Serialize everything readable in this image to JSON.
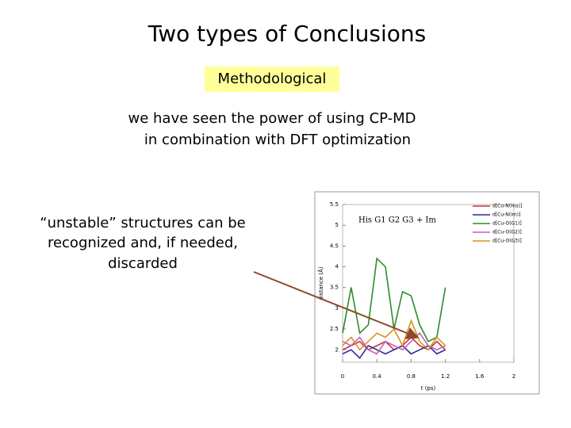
{
  "title": "Two types of Conclusions",
  "tag": "Methodological",
  "statement": [
    "we have seen the power of using CP-MD",
    "in combination with DFT optimization"
  ],
  "note": [
    "“unstable” structures can be",
    "recognized and, if needed,",
    "discarded"
  ],
  "figure": {
    "type": "line",
    "annotation": "His G1 G2 G3 + Im",
    "x_label": "t (ps)",
    "y_label": "distance (Å)",
    "xlim": [
      0,
      2
    ],
    "ylim": [
      1.7,
      5.5
    ],
    "xticks": [
      0,
      0.4,
      0.8,
      1.2,
      1.6,
      2
    ],
    "yticks": [
      2,
      2.5,
      3,
      3.5,
      4,
      4.5,
      5,
      5.5
    ],
    "x": [
      0,
      0.1,
      0.2,
      0.3,
      0.4,
      0.5,
      0.6,
      0.7,
      0.8,
      0.9,
      1.0,
      1.1,
      1.2
    ],
    "series": [
      {
        "name": "d[Cu-N(His)]",
        "color": "#d03030",
        "values": [
          2.0,
          2.1,
          2.2,
          2.0,
          2.1,
          2.2,
          2.0,
          2.1,
          2.3,
          2.1,
          2.0,
          2.2,
          2.0
        ]
      },
      {
        "name": "d[Cu-N(Im)]",
        "color": "#2a2a9a",
        "values": [
          1.9,
          2.0,
          1.8,
          2.1,
          2.0,
          1.9,
          2.0,
          2.1,
          1.9,
          2.0,
          2.1,
          1.9,
          2.0
        ]
      },
      {
        "name": "d[Cu-O(G1)]",
        "color": "#2e8b2e",
        "values": [
          2.4,
          3.5,
          2.4,
          2.6,
          4.2,
          4.0,
          2.5,
          3.4,
          3.3,
          2.6,
          2.2,
          2.3,
          3.5
        ]
      },
      {
        "name": "d[Cu-O(G2)]",
        "color": "#c060c0",
        "values": [
          2.2,
          2.1,
          2.3,
          2.0,
          1.9,
          2.2,
          2.1,
          2.0,
          2.2,
          2.4,
          2.1,
          2.0,
          2.1
        ]
      },
      {
        "name": "d[Cu-O(G3)]",
        "color": "#d89020",
        "values": [
          2.1,
          2.3,
          2.0,
          2.2,
          2.4,
          2.3,
          2.5,
          2.1,
          2.7,
          2.2,
          2.0,
          2.3,
          2.1
        ]
      }
    ]
  }
}
